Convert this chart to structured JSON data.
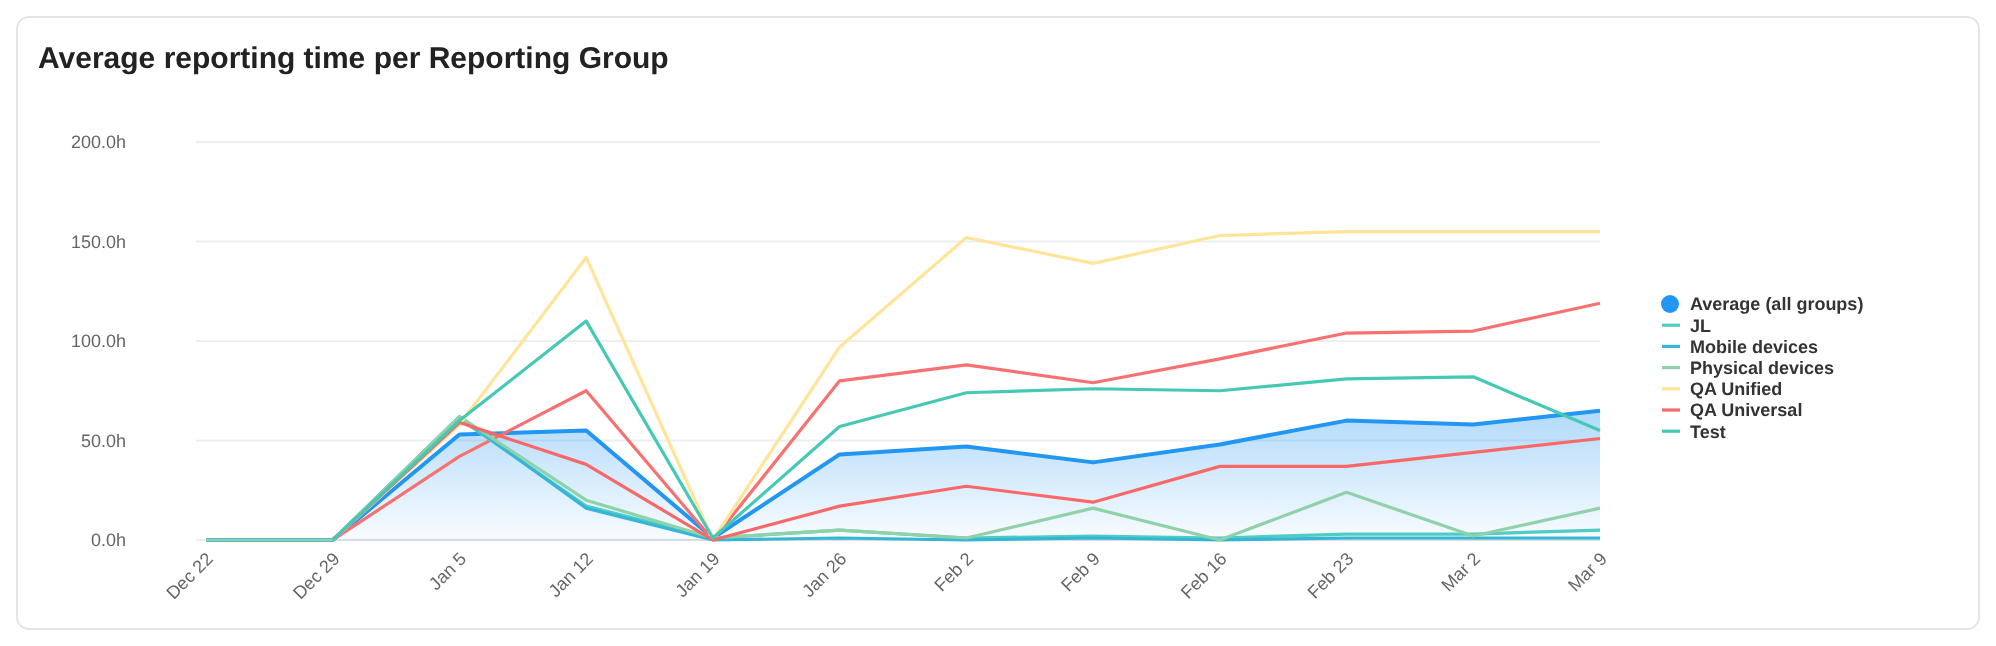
{
  "chart_data": {
    "type": "line",
    "title": "Average reporting time per Reporting Group",
    "categories": [
      "Dec 22",
      "Dec 29",
      "Jan 5",
      "Jan 12",
      "Jan 19",
      "Jan 26",
      "Feb 2",
      "Feb 9",
      "Feb 16",
      "Feb 23",
      "Mar 2",
      "Mar 9"
    ],
    "ylim": [
      0,
      200
    ],
    "yticks": [
      {
        "value": 0,
        "label": "0.0h"
      },
      {
        "value": 50,
        "label": "50.0h"
      },
      {
        "value": 100,
        "label": "100.0h"
      },
      {
        "value": 150,
        "label": "150.0h"
      },
      {
        "value": 200,
        "label": "200.0h"
      }
    ],
    "grid": "y",
    "legend": "right",
    "series": [
      {
        "name": "Average (all groups)",
        "type": "area",
        "color": "#2196f3",
        "values": [
          0,
          0,
          53,
          55,
          1,
          43,
          47,
          39,
          48,
          60,
          58,
          65
        ]
      },
      {
        "color": "#f87171",
        "values": [
          null,
          0,
          42,
          75,
          0,
          80,
          88,
          79,
          91,
          104,
          105,
          119
        ]
      },
      {
        "name": "JL",
        "color": "#4ecdc4",
        "values": [
          null,
          0,
          61,
          17,
          1,
          5,
          1,
          2,
          1,
          3,
          3,
          5
        ]
      },
      {
        "name": "Mobile devices",
        "color": "#35b6d4",
        "values": [
          null,
          0,
          62,
          16,
          0,
          1,
          0,
          1,
          0,
          1,
          1,
          1
        ]
      },
      {
        "name": "Physical devices",
        "color": "#8fd1a8",
        "values": [
          0,
          0,
          62,
          20,
          1,
          5,
          1,
          16,
          0,
          24,
          2,
          16
        ]
      },
      {
        "name": "QA Unified",
        "color": "#ffe49a",
        "values": [
          null,
          0,
          58,
          142,
          0,
          97,
          152,
          139,
          153,
          155,
          155,
          155
        ]
      },
      {
        "name": "QA Universal",
        "color": "#f86868",
        "values": [
          null,
          0,
          59,
          38,
          0,
          17,
          27,
          19,
          37,
          37,
          44,
          51
        ]
      },
      {
        "name": "Test",
        "color": "#45c9b5",
        "values": [
          null,
          0,
          60,
          110,
          1,
          57,
          74,
          76,
          75,
          81,
          82,
          55
        ]
      }
    ]
  }
}
